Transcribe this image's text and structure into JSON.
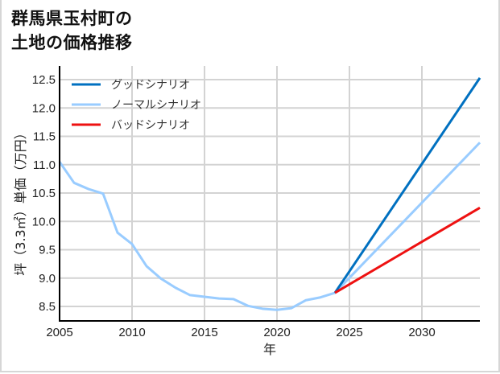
{
  "title": "群馬県玉村町の\n土地の価格推移",
  "chart_data": {
    "type": "line",
    "title": "群馬県玉村町の土地の価格推移",
    "xlabel": "年",
    "ylabel": "坪（3.3㎡）単価（万円）",
    "xlim": [
      2005,
      2034
    ],
    "ylim": [
      8.25,
      12.65
    ],
    "xticks": [
      2005,
      2010,
      2015,
      2020,
      2025,
      2030
    ],
    "yticks": [
      8.5,
      9.0,
      9.5,
      10.0,
      10.5,
      11.0,
      11.5,
      12.0,
      12.5
    ],
    "ytick_labels": [
      "8.5",
      "9.0",
      "9.5",
      "10.0",
      "10.5",
      "11.0",
      "11.5",
      "12.0",
      "12.5"
    ],
    "grid": true,
    "legend_position": "upper left",
    "series": [
      {
        "name": "グッドシナリオ",
        "color": "#0070c0",
        "x": [
          2024,
          2034
        ],
        "values": [
          8.74,
          12.53
        ]
      },
      {
        "name": "ノーマルシナリオ",
        "color": "#99ccff",
        "x": [
          2005,
          2006,
          2007,
          2008,
          2009,
          2010,
          2011,
          2012,
          2013,
          2014,
          2015,
          2016,
          2017,
          2018,
          2019,
          2020,
          2021,
          2022,
          2023,
          2024,
          2034
        ],
        "values": [
          11.05,
          10.68,
          10.57,
          10.49,
          9.8,
          9.6,
          9.21,
          8.99,
          8.83,
          8.7,
          8.67,
          8.64,
          8.63,
          8.51,
          8.46,
          8.44,
          8.47,
          8.61,
          8.66,
          8.74,
          11.39
        ]
      },
      {
        "name": "バッドシナリオ",
        "color": "#ee1111",
        "x": [
          2024,
          2034
        ],
        "values": [
          8.74,
          10.24
        ]
      }
    ]
  }
}
